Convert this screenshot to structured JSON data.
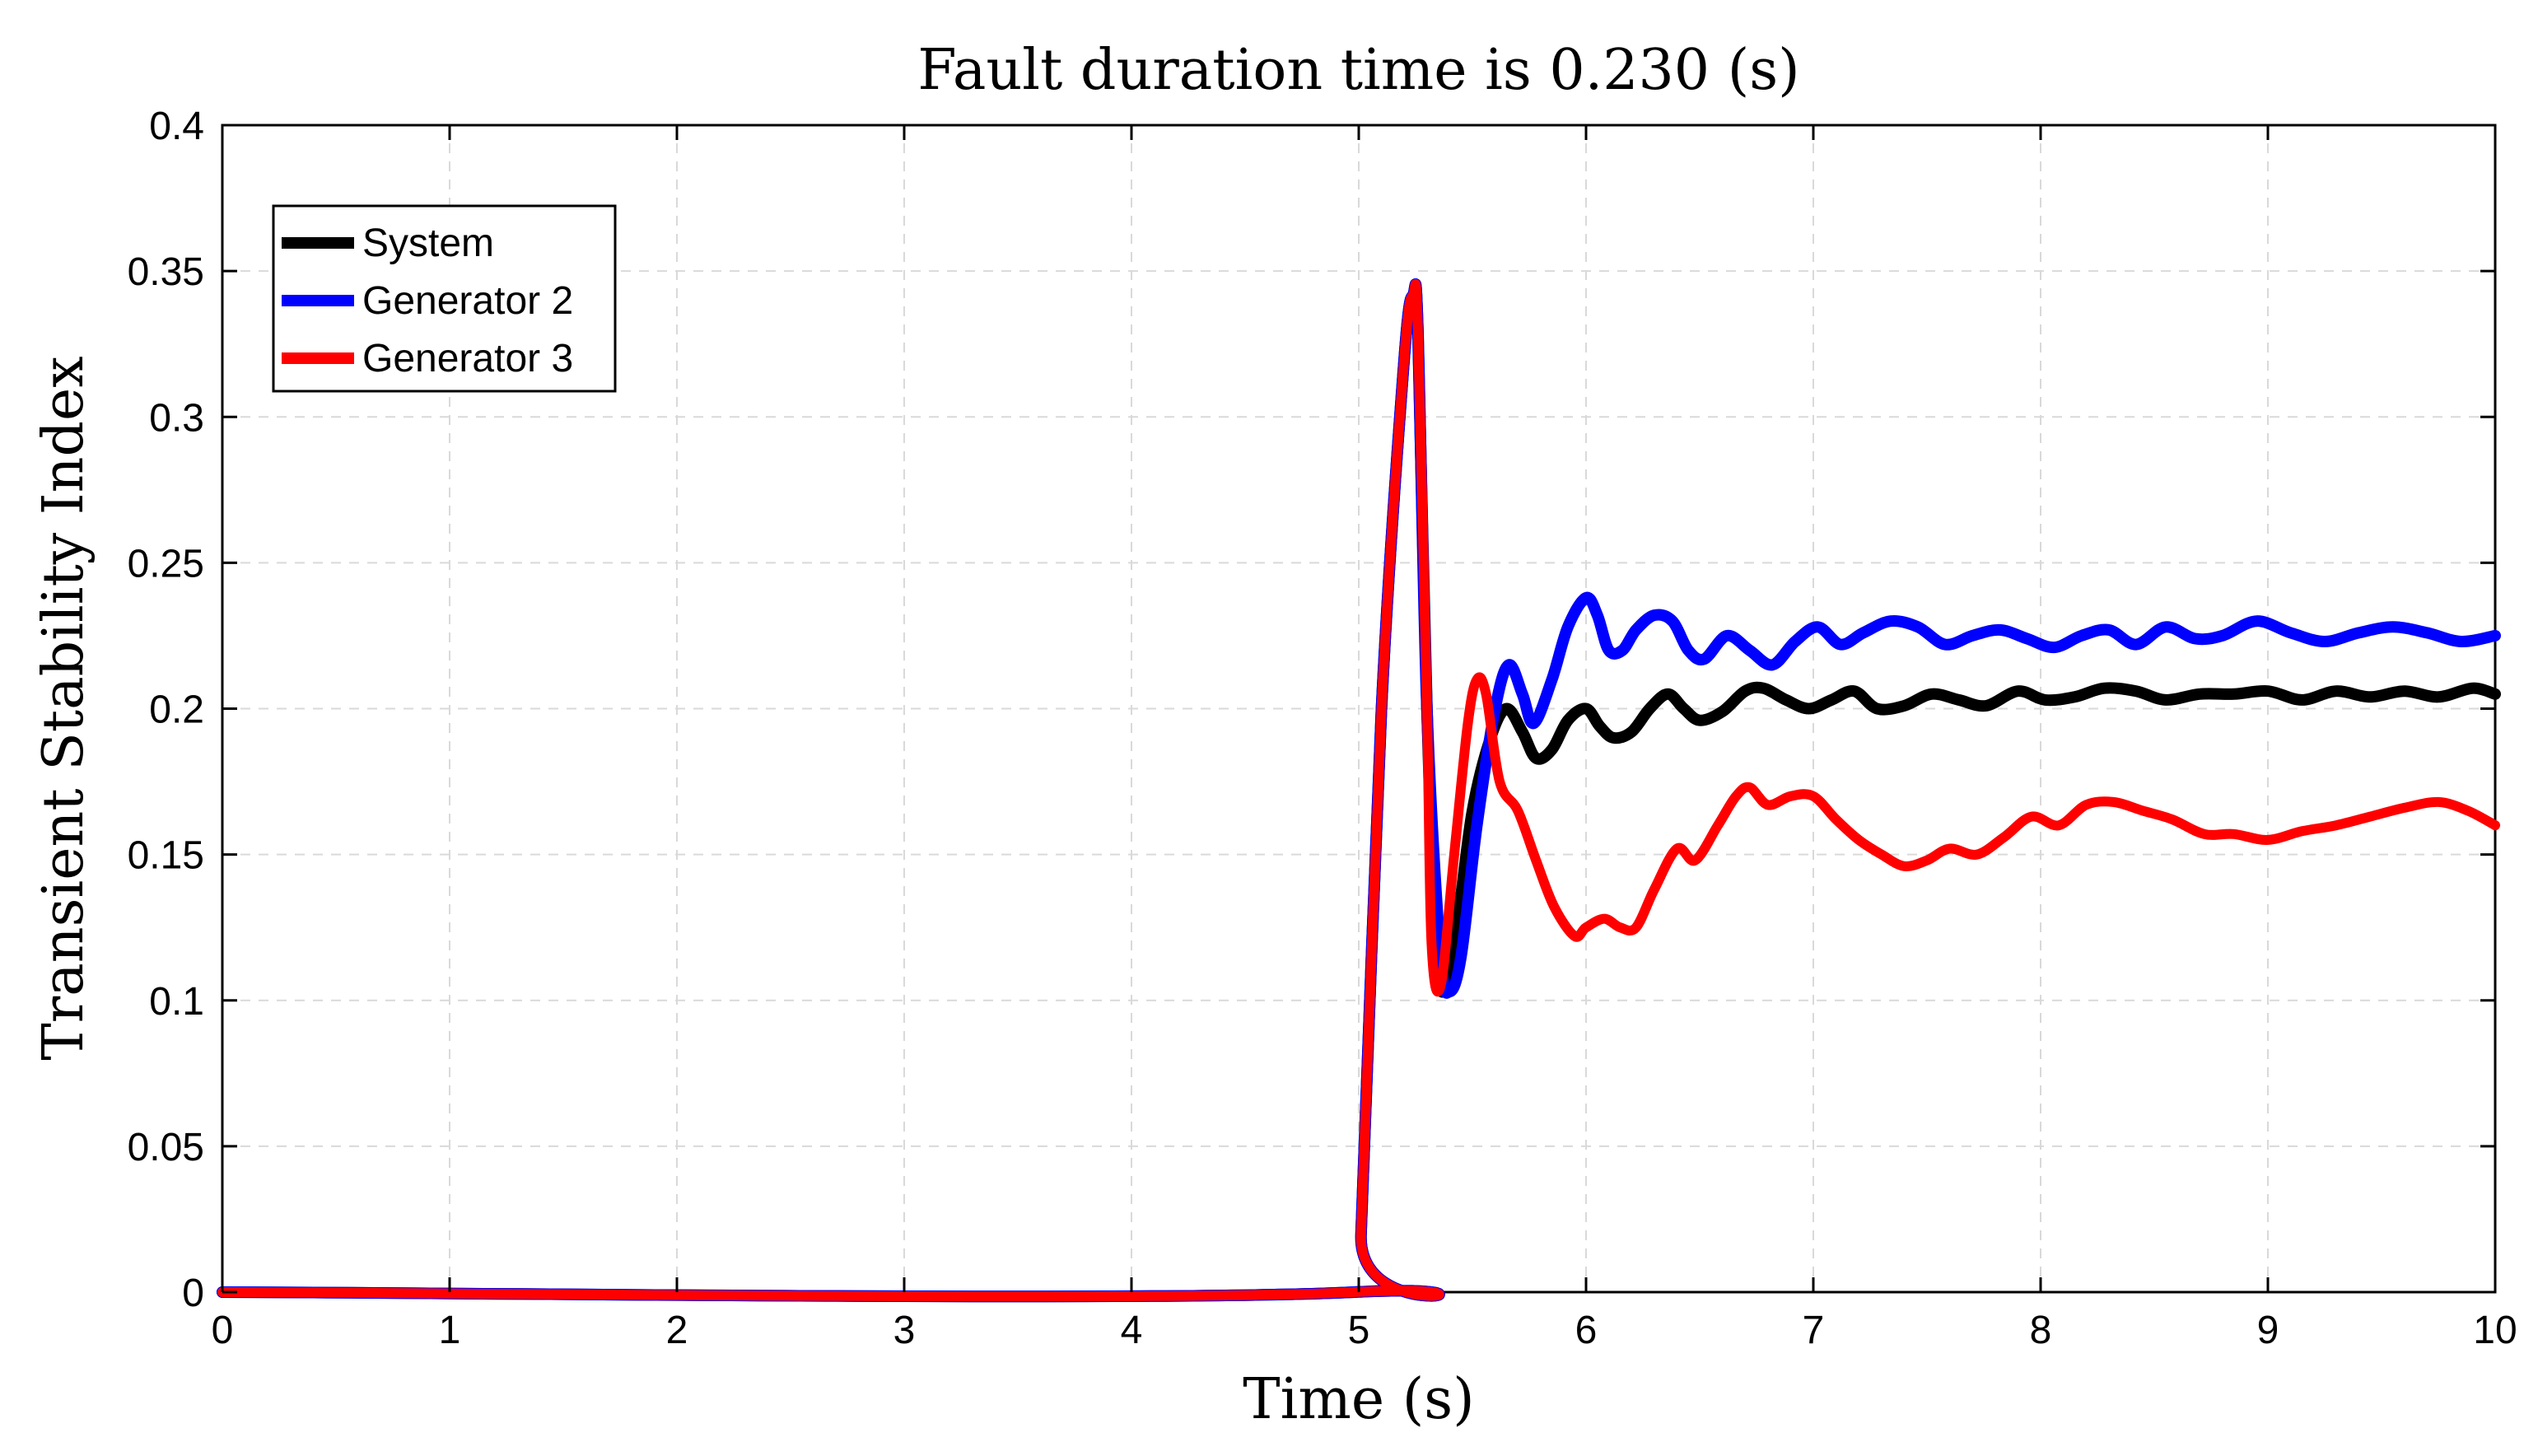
{
  "chart_data": {
    "type": "line",
    "title": "Fault duration time is 0.230 (s)",
    "xlabel": "Time (s)",
    "ylabel": "Transient Stability Index",
    "xlim": [
      0,
      10
    ],
    "ylim": [
      0,
      0.4
    ],
    "xticks": [
      0,
      1,
      2,
      3,
      4,
      5,
      6,
      7,
      8,
      9,
      10
    ],
    "yticks": [
      0,
      0.05,
      0.1,
      0.15,
      0.2,
      0.25,
      0.3,
      0.35,
      0.4
    ],
    "xtick_labels": [
      "0",
      "1",
      "2",
      "3",
      "4",
      "5",
      "6",
      "7",
      "8",
      "9",
      "10"
    ],
    "ytick_labels": [
      "0",
      "0.05",
      "0.1",
      "0.15",
      "0.2",
      "0.25",
      "0.3",
      "0.35",
      "0.4"
    ],
    "grid": true,
    "legend_position": "top-left",
    "series": [
      {
        "name": "System",
        "color": "#000000",
        "x": [
          0,
          4.98,
          5.01,
          5.1,
          5.2,
          5.24,
          5.26,
          5.3,
          5.35,
          5.42,
          5.5,
          5.58,
          5.65,
          5.72,
          5.78,
          5.85,
          5.92,
          6.0,
          6.06,
          6.12,
          6.2,
          6.28,
          6.36,
          6.43,
          6.5,
          6.6,
          6.7,
          6.78,
          6.88,
          6.98,
          7.08,
          7.18,
          7.28,
          7.4,
          7.52,
          7.64,
          7.76,
          7.9,
          8.02,
          8.15,
          8.28,
          8.42,
          8.55,
          8.7,
          8.85,
          9.0,
          9.15,
          9.3,
          9.45,
          9.6,
          9.75,
          9.9,
          10.0
        ],
        "y": [
          0,
          0,
          0.02,
          0.2,
          0.32,
          0.342,
          0.33,
          0.2,
          0.108,
          0.12,
          0.165,
          0.19,
          0.2,
          0.192,
          0.183,
          0.186,
          0.196,
          0.2,
          0.194,
          0.19,
          0.192,
          0.2,
          0.205,
          0.2,
          0.196,
          0.199,
          0.206,
          0.207,
          0.203,
          0.2,
          0.203,
          0.206,
          0.2,
          0.201,
          0.205,
          0.203,
          0.201,
          0.206,
          0.203,
          0.204,
          0.207,
          0.206,
          0.203,
          0.205,
          0.205,
          0.206,
          0.203,
          0.206,
          0.204,
          0.206,
          0.204,
          0.207,
          0.205
        ]
      },
      {
        "name": "Generator 2",
        "color": "#0000ff",
        "x": [
          0,
          4.98,
          5.01,
          5.1,
          5.2,
          5.24,
          5.26,
          5.3,
          5.36,
          5.4,
          5.45,
          5.52,
          5.6,
          5.66,
          5.72,
          5.77,
          5.85,
          5.92,
          6.0,
          6.05,
          6.1,
          6.16,
          6.22,
          6.3,
          6.38,
          6.45,
          6.52,
          6.62,
          6.72,
          6.82,
          6.92,
          7.02,
          7.12,
          7.22,
          7.34,
          7.46,
          7.58,
          7.7,
          7.82,
          7.94,
          8.06,
          8.18,
          8.3,
          8.42,
          8.55,
          8.68,
          8.8,
          8.95,
          9.1,
          9.25,
          9.4,
          9.55,
          9.7,
          9.85,
          10.0
        ],
        "y": [
          0,
          0,
          0.02,
          0.2,
          0.32,
          0.342,
          0.33,
          0.2,
          0.115,
          0.103,
          0.115,
          0.16,
          0.2,
          0.215,
          0.205,
          0.195,
          0.21,
          0.228,
          0.238,
          0.232,
          0.22,
          0.22,
          0.227,
          0.232,
          0.23,
          0.22,
          0.217,
          0.225,
          0.22,
          0.215,
          0.223,
          0.228,
          0.222,
          0.226,
          0.23,
          0.228,
          0.222,
          0.225,
          0.227,
          0.224,
          0.221,
          0.225,
          0.227,
          0.222,
          0.228,
          0.224,
          0.225,
          0.23,
          0.226,
          0.223,
          0.226,
          0.228,
          0.226,
          0.223,
          0.225
        ]
      },
      {
        "name": "Generator 3",
        "color": "#ff0000",
        "x": [
          0,
          4.98,
          5.01,
          5.1,
          5.2,
          5.24,
          5.26,
          5.3,
          5.32,
          5.36,
          5.42,
          5.48,
          5.52,
          5.56,
          5.62,
          5.7,
          5.78,
          5.86,
          5.95,
          6.0,
          6.08,
          6.15,
          6.22,
          6.3,
          6.4,
          6.48,
          6.58,
          6.66,
          6.72,
          6.8,
          6.9,
          7.0,
          7.1,
          7.2,
          7.3,
          7.4,
          7.5,
          7.6,
          7.72,
          7.84,
          7.96,
          8.08,
          8.2,
          8.32,
          8.45,
          8.58,
          8.72,
          8.85,
          9.0,
          9.15,
          9.3,
          9.45,
          9.6,
          9.75,
          9.88,
          10.0
        ],
        "y": [
          0,
          0,
          0.02,
          0.2,
          0.32,
          0.342,
          0.33,
          0.2,
          0.12,
          0.105,
          0.15,
          0.195,
          0.21,
          0.205,
          0.175,
          0.165,
          0.148,
          0.132,
          0.122,
          0.125,
          0.128,
          0.125,
          0.125,
          0.138,
          0.152,
          0.148,
          0.16,
          0.17,
          0.173,
          0.167,
          0.17,
          0.17,
          0.162,
          0.155,
          0.15,
          0.146,
          0.148,
          0.152,
          0.15,
          0.156,
          0.163,
          0.16,
          0.167,
          0.168,
          0.165,
          0.162,
          0.157,
          0.157,
          0.155,
          0.158,
          0.16,
          0.163,
          0.166,
          0.168,
          0.165,
          0.16
        ]
      }
    ]
  }
}
